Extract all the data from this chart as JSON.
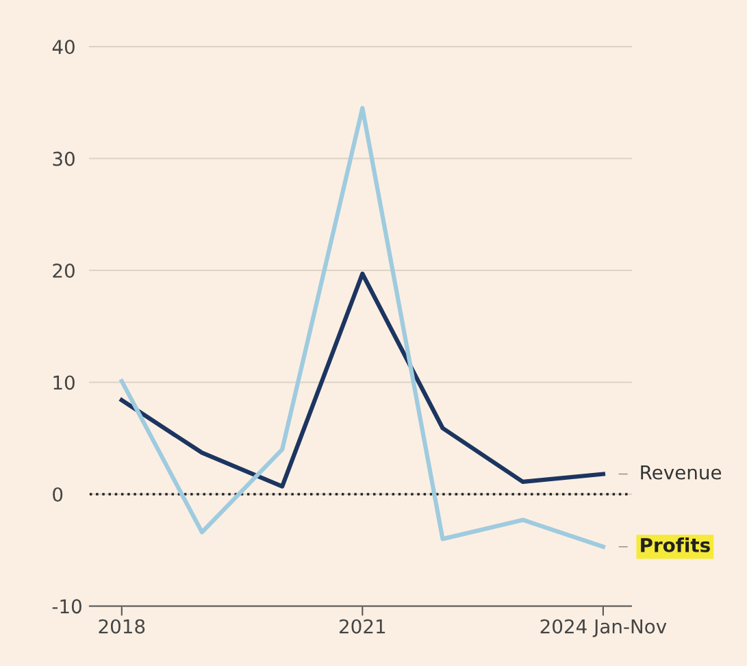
{
  "chart_data": {
    "type": "line",
    "x": [
      2018,
      2019,
      2020,
      2021,
      2022,
      2023,
      2024
    ],
    "series": [
      {
        "name": "Revenue",
        "color": "#1c3560",
        "values": [
          8.4,
          3.7,
          0.7,
          19.7,
          5.9,
          1.1,
          1.8
        ]
      },
      {
        "name": "Profits",
        "color": "#9fcbdf",
        "values": [
          10.1,
          -3.4,
          4.0,
          34.5,
          -4.0,
          -2.3,
          -4.7
        ]
      }
    ],
    "xlim": [
      2017.6,
      2024.35
    ],
    "ylim": [
      -10,
      40
    ],
    "xticks": [
      2018,
      2021,
      {
        "value": 2024,
        "label": "2024 Jan-Nov"
      }
    ],
    "yticks": [
      {
        "value": -10,
        "label": "-10"
      },
      0,
      10,
      20,
      30,
      40
    ],
    "grid": "y",
    "legend": false,
    "marker": "none",
    "line_style": "solid",
    "ref_lines": [
      {
        "axis": "y",
        "value": 0,
        "label": null,
        "color": "#222222",
        "line_style": "dotted"
      }
    ]
  }
}
